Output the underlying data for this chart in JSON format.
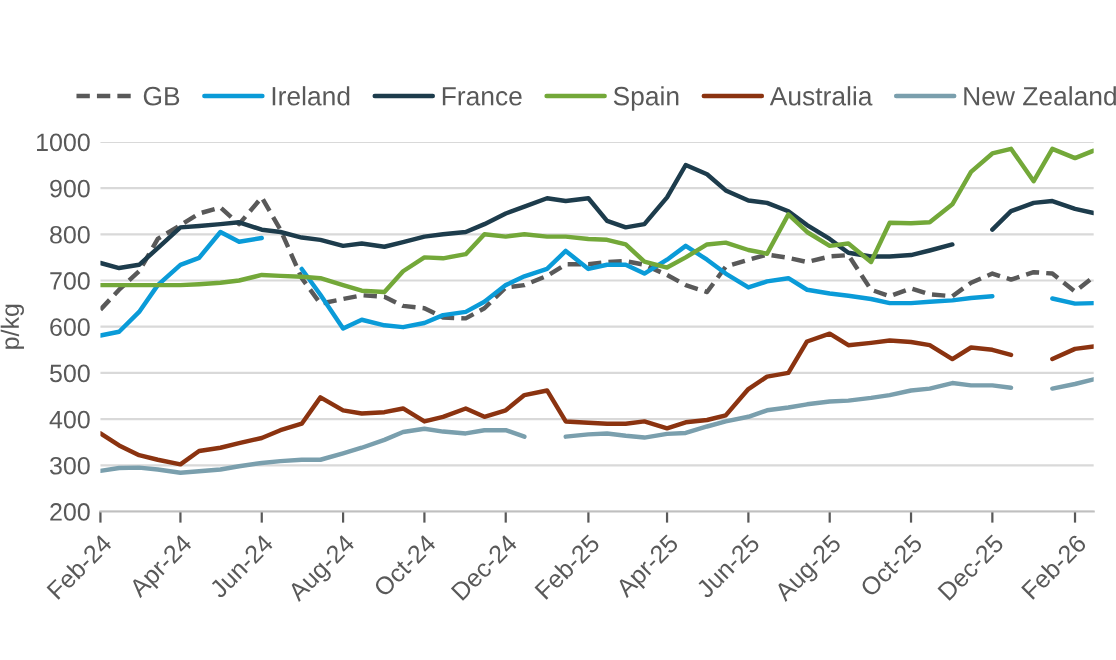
{
  "chart_data": {
    "type": "line",
    "ylabel": "p/kg",
    "x": [
      "2024-02-01",
      "2024-02-15",
      "2024-03-01",
      "2024-03-15",
      "2024-04-01",
      "2024-04-15",
      "2024-05-01",
      "2024-05-15",
      "2024-06-01",
      "2024-06-15",
      "2024-07-01",
      "2024-07-15",
      "2024-08-01",
      "2024-08-15",
      "2024-09-01",
      "2024-09-15",
      "2024-10-01",
      "2024-10-15",
      "2024-11-01",
      "2024-11-15",
      "2024-12-01",
      "2024-12-15",
      "2025-01-01",
      "2025-01-15",
      "2025-02-01",
      "2025-02-15",
      "2025-03-01",
      "2025-03-15",
      "2025-04-01",
      "2025-04-15",
      "2025-05-01",
      "2025-05-15",
      "2025-06-01",
      "2025-06-15",
      "2025-07-01",
      "2025-07-15",
      "2025-08-01",
      "2025-08-15",
      "2025-09-01",
      "2025-09-15",
      "2025-10-01",
      "2025-10-15",
      "2025-11-01",
      "2025-11-15",
      "2025-12-01",
      "2025-12-15",
      "2026-01-01",
      "2026-01-15",
      "2026-02-01",
      "2026-02-15"
    ],
    "series": [
      {
        "name": "GB",
        "color": "#595959",
        "line_style": "dashed",
        "values": [
          637,
          680,
          720,
          790,
          820,
          845,
          858,
          822,
          880,
          810,
          705,
          650,
          660,
          668,
          665,
          645,
          640,
          620,
          618,
          640,
          685,
          690,
          710,
          735,
          735,
          740,
          742,
          734,
          712,
          690,
          675,
          730,
          745,
          756,
          749,
          740,
          752,
          755,
          680,
          666,
          683,
          670,
          666,
          695,
          715,
          702,
          718,
          715,
          676,
          708
        ]
      },
      {
        "name": "Ireland",
        "color": "#0a9bd8",
        "line_style": "solid",
        "values": [
          581,
          589,
          632,
          690,
          734,
          749,
          805,
          784,
          792,
          null,
          725,
          669,
          596,
          615,
          603,
          599,
          608,
          625,
          632,
          654,
          690,
          709,
          725,
          764,
          725,
          734,
          734,
          715,
          745,
          775,
          745,
          715,
          685,
          698,
          705,
          680,
          672,
          667,
          660,
          651,
          651,
          654,
          657,
          662,
          666,
          null,
          null,
          661,
          650,
          651
        ]
      },
      {
        "name": "France",
        "color": "#1d3c4c",
        "line_style": "solid",
        "values": [
          738,
          727,
          734,
          770,
          815,
          818,
          822,
          826,
          810,
          805,
          793,
          788,
          775,
          780,
          773,
          783,
          795,
          800,
          805,
          822,
          845,
          860,
          878,
          872,
          878,
          829,
          815,
          822,
          880,
          950,
          930,
          895,
          873,
          868,
          850,
          820,
          790,
          760,
          752,
          752,
          755,
          765,
          778,
          null,
          810,
          850,
          868,
          872,
          855,
          846
        ]
      },
      {
        "name": "Spain",
        "color": "#73a839",
        "line_style": "solid",
        "values": [
          690,
          690,
          690,
          690,
          690,
          692,
          695,
          700,
          712,
          710,
          708,
          705,
          690,
          678,
          675,
          720,
          750,
          748,
          757,
          800,
          795,
          800,
          795,
          795,
          790,
          788,
          778,
          741,
          728,
          750,
          778,
          782,
          766,
          758,
          843,
          805,
          775,
          780,
          740,
          825,
          824,
          826,
          865,
          935,
          975,
          985,
          915,
          985,
          965,
          981
        ]
      },
      {
        "name": "Australia",
        "color": "#8b3310",
        "line_style": "solid",
        "values": [
          369,
          343,
          322,
          312,
          302,
          331,
          338,
          348,
          359,
          376,
          390,
          447,
          419,
          412,
          415,
          423,
          395,
          405,
          423,
          405,
          419,
          452,
          462,
          395,
          392,
          390,
          390,
          395,
          380,
          393,
          398,
          408,
          465,
          492,
          500,
          568,
          585,
          560,
          565,
          570,
          567,
          560,
          530,
          555,
          550,
          539,
          null,
          530,
          552,
          557
        ]
      },
      {
        "name": "New Zealand",
        "color": "#7a9fad",
        "line_style": "solid",
        "values": [
          288,
          294,
          295,
          291,
          284,
          287,
          291,
          298,
          305,
          309,
          312,
          312,
          326,
          338,
          355,
          372,
          379,
          373,
          369,
          376,
          376,
          362,
          null,
          362,
          367,
          369,
          364,
          360,
          368,
          370,
          384,
          395,
          405,
          419,
          425,
          432,
          438,
          440,
          446,
          452,
          462,
          466,
          478,
          473,
          473,
          468,
          null,
          466,
          476,
          486
        ]
      }
    ],
    "xlim": [
      "2024-02-01",
      "2026-02-15"
    ],
    "xticks": [
      {
        "value": "2024-02-01",
        "label": "Feb-24"
      },
      {
        "value": "2024-04-01",
        "label": "Apr-24"
      },
      {
        "value": "2024-06-01",
        "label": "Jun-24"
      },
      {
        "value": "2024-08-01",
        "label": "Aug-24"
      },
      {
        "value": "2024-10-01",
        "label": "Oct-24"
      },
      {
        "value": "2024-12-01",
        "label": "Dec-24"
      },
      {
        "value": "2025-02-01",
        "label": "Feb-25"
      },
      {
        "value": "2025-04-01",
        "label": "Apr-25"
      },
      {
        "value": "2025-06-01",
        "label": "Jun-25"
      },
      {
        "value": "2025-08-01",
        "label": "Aug-25"
      },
      {
        "value": "2025-10-01",
        "label": "Oct-25"
      },
      {
        "value": "2025-12-01",
        "label": "Dec-25"
      },
      {
        "value": "2026-02-01",
        "label": "Feb-26"
      }
    ],
    "ylim": [
      200,
      1000
    ],
    "yticks": [
      200,
      300,
      400,
      500,
      600,
      700,
      800,
      900,
      1000
    ],
    "grid": "y",
    "legend": "top"
  }
}
